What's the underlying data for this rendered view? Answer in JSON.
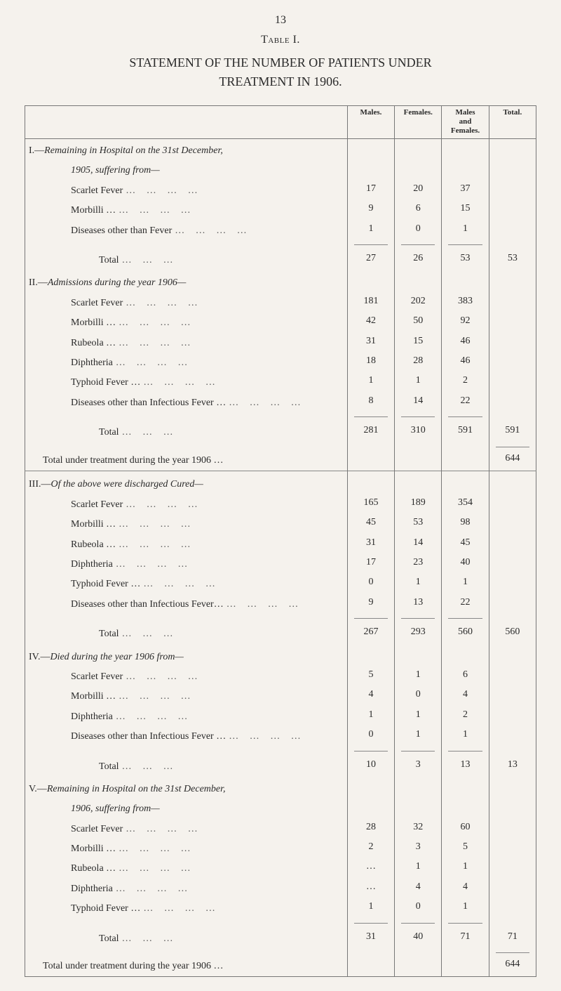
{
  "page_number": "13",
  "table_label": "Table I.",
  "title_line1": "STATEMENT OF THE NUMBER OF PATIENTS UNDER",
  "title_line2": "TREATMENT IN 1906.",
  "headers": {
    "males": "Males.",
    "females": "Females.",
    "males_and_females": "Males\nand\nFemales.",
    "total": "Total."
  },
  "sections": {
    "s1": {
      "heading_prefix": "I.—",
      "heading_italic": "Remaining in Hospital on the 31st December,",
      "sub_heading": "1905, suffering from—",
      "rows": [
        {
          "label": "Scarlet Fever",
          "m": "17",
          "f": "20",
          "mf": "37"
        },
        {
          "label": "Morbilli …",
          "m": "9",
          "f": "6",
          "mf": "15"
        },
        {
          "label": "Diseases other than Fever",
          "m": "1",
          "f": "0",
          "mf": "1"
        }
      ],
      "total_label": "Total",
      "total": {
        "m": "27",
        "f": "26",
        "mf": "53",
        "t": "53"
      }
    },
    "s2": {
      "heading_prefix": "II.—",
      "heading_italic": "Admissions during the year 1906—",
      "rows": [
        {
          "label": "Scarlet Fever",
          "m": "181",
          "f": "202",
          "mf": "383"
        },
        {
          "label": "Morbilli …",
          "m": "42",
          "f": "50",
          "mf": "92"
        },
        {
          "label": "Rubeola …",
          "m": "31",
          "f": "15",
          "mf": "46"
        },
        {
          "label": "Diphtheria",
          "m": "18",
          "f": "28",
          "mf": "46"
        },
        {
          "label": "Typhoid Fever …",
          "m": "1",
          "f": "1",
          "mf": "2"
        },
        {
          "label": "Diseases other than Infectious Fever …",
          "m": "8",
          "f": "14",
          "mf": "22"
        }
      ],
      "total_label": "Total",
      "total": {
        "m": "281",
        "f": "310",
        "mf": "591",
        "t": "591"
      },
      "grand_label": "Total under treatment during the year 1906 …",
      "grand_total": "644"
    },
    "s3": {
      "heading_prefix": "III.—",
      "heading_italic": "Of the above were discharged Cured—",
      "rows": [
        {
          "label": "Scarlet Fever",
          "m": "165",
          "f": "189",
          "mf": "354"
        },
        {
          "label": "Morbilli …",
          "m": "45",
          "f": "53",
          "mf": "98"
        },
        {
          "label": "Rubeola …",
          "m": "31",
          "f": "14",
          "mf": "45"
        },
        {
          "label": "Diphtheria",
          "m": "17",
          "f": "23",
          "mf": "40"
        },
        {
          "label": "Typhoid Fever …",
          "m": "0",
          "f": "1",
          "mf": "1"
        },
        {
          "label": "Diseases other than Infectious Fever…",
          "m": "9",
          "f": "13",
          "mf": "22"
        }
      ],
      "total_label": "Total",
      "total": {
        "m": "267",
        "f": "293",
        "mf": "560",
        "t": "560"
      }
    },
    "s4": {
      "heading_prefix": "IV.—",
      "heading_italic": "Died during the year 1906 from—",
      "rows": [
        {
          "label": "Scarlet Fever",
          "m": "5",
          "f": "1",
          "mf": "6"
        },
        {
          "label": "Morbilli …",
          "m": "4",
          "f": "0",
          "mf": "4"
        },
        {
          "label": "Diphtheria",
          "m": "1",
          "f": "1",
          "mf": "2"
        },
        {
          "label": "Diseases other than Infectious Fever …",
          "m": "0",
          "f": "1",
          "mf": "1"
        }
      ],
      "total_label": "Total",
      "total": {
        "m": "10",
        "f": "3",
        "mf": "13",
        "t": "13"
      }
    },
    "s5": {
      "heading_prefix": "V.—",
      "heading_italic": "Remaining in Hospital on the 31st December,",
      "sub_heading": "1906, suffering from—",
      "rows": [
        {
          "label": "Scarlet Fever",
          "m": "28",
          "f": "32",
          "mf": "60"
        },
        {
          "label": "Morbilli …",
          "m": "2",
          "f": "3",
          "mf": "5"
        },
        {
          "label": "Rubeola …",
          "m": "…",
          "f": "1",
          "mf": "1"
        },
        {
          "label": "Diphtheria",
          "m": "…",
          "f": "4",
          "mf": "4"
        },
        {
          "label": "Typhoid Fever …",
          "m": "1",
          "f": "0",
          "mf": "1"
        }
      ],
      "total_label": "Total",
      "total": {
        "m": "31",
        "f": "40",
        "mf": "71",
        "t": "71"
      },
      "grand_label": "Total under treatment during the year 1906 …",
      "grand_total": "644"
    }
  }
}
